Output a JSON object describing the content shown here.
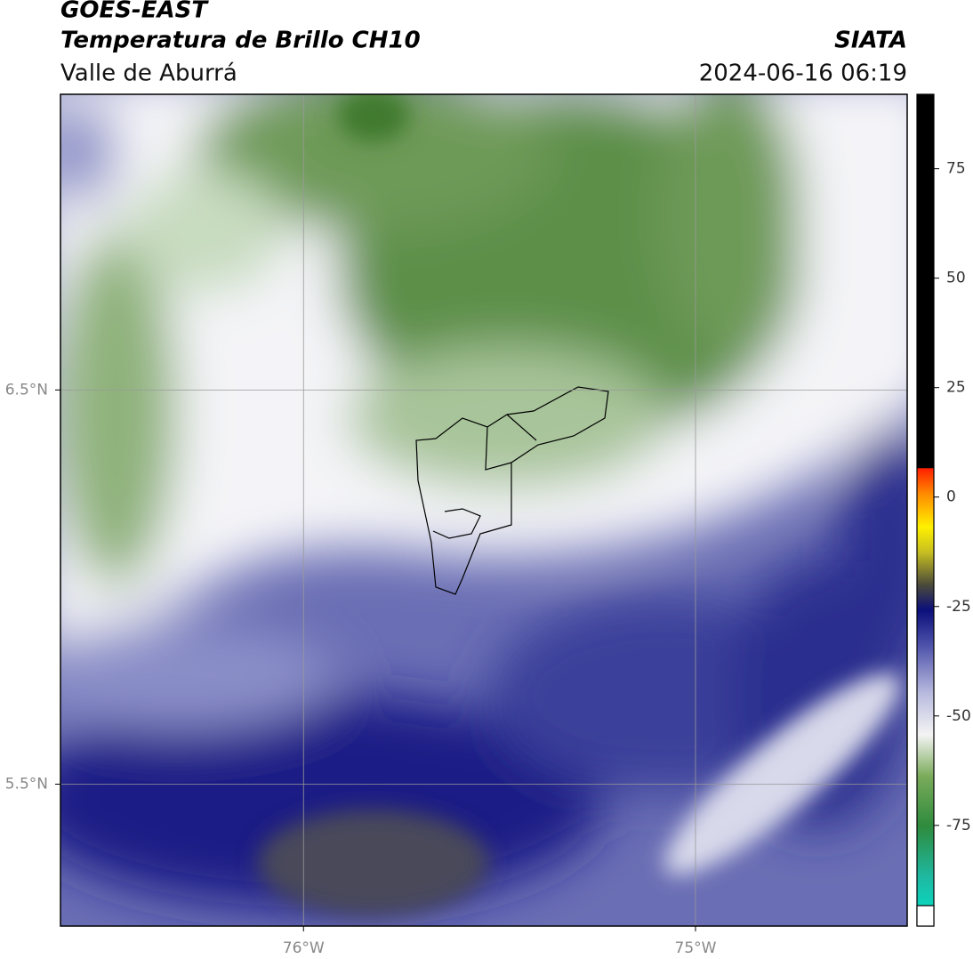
{
  "header": {
    "title": "GOES-EAST",
    "subtitle": "Temperatura de Brillo CH10",
    "region": "Valle de Aburrá",
    "source": "SIATA",
    "datetime": "2024-06-16 06:19"
  },
  "map": {
    "xlim": [
      -76.62,
      -74.46
    ],
    "ylim": [
      5.14,
      7.25
    ],
    "xticks": [
      {
        "value": -76,
        "label": "76°W"
      },
      {
        "value": -75,
        "label": "75°W"
      }
    ],
    "yticks": [
      {
        "value": 5.5,
        "label": "5.5°N"
      },
      {
        "value": 6.5,
        "label": "6.5°N"
      }
    ]
  },
  "colorbar": {
    "lim": [
      -98,
      92
    ],
    "ticks": [
      -75,
      -50,
      -25,
      0,
      25,
      50,
      75
    ]
  }
}
